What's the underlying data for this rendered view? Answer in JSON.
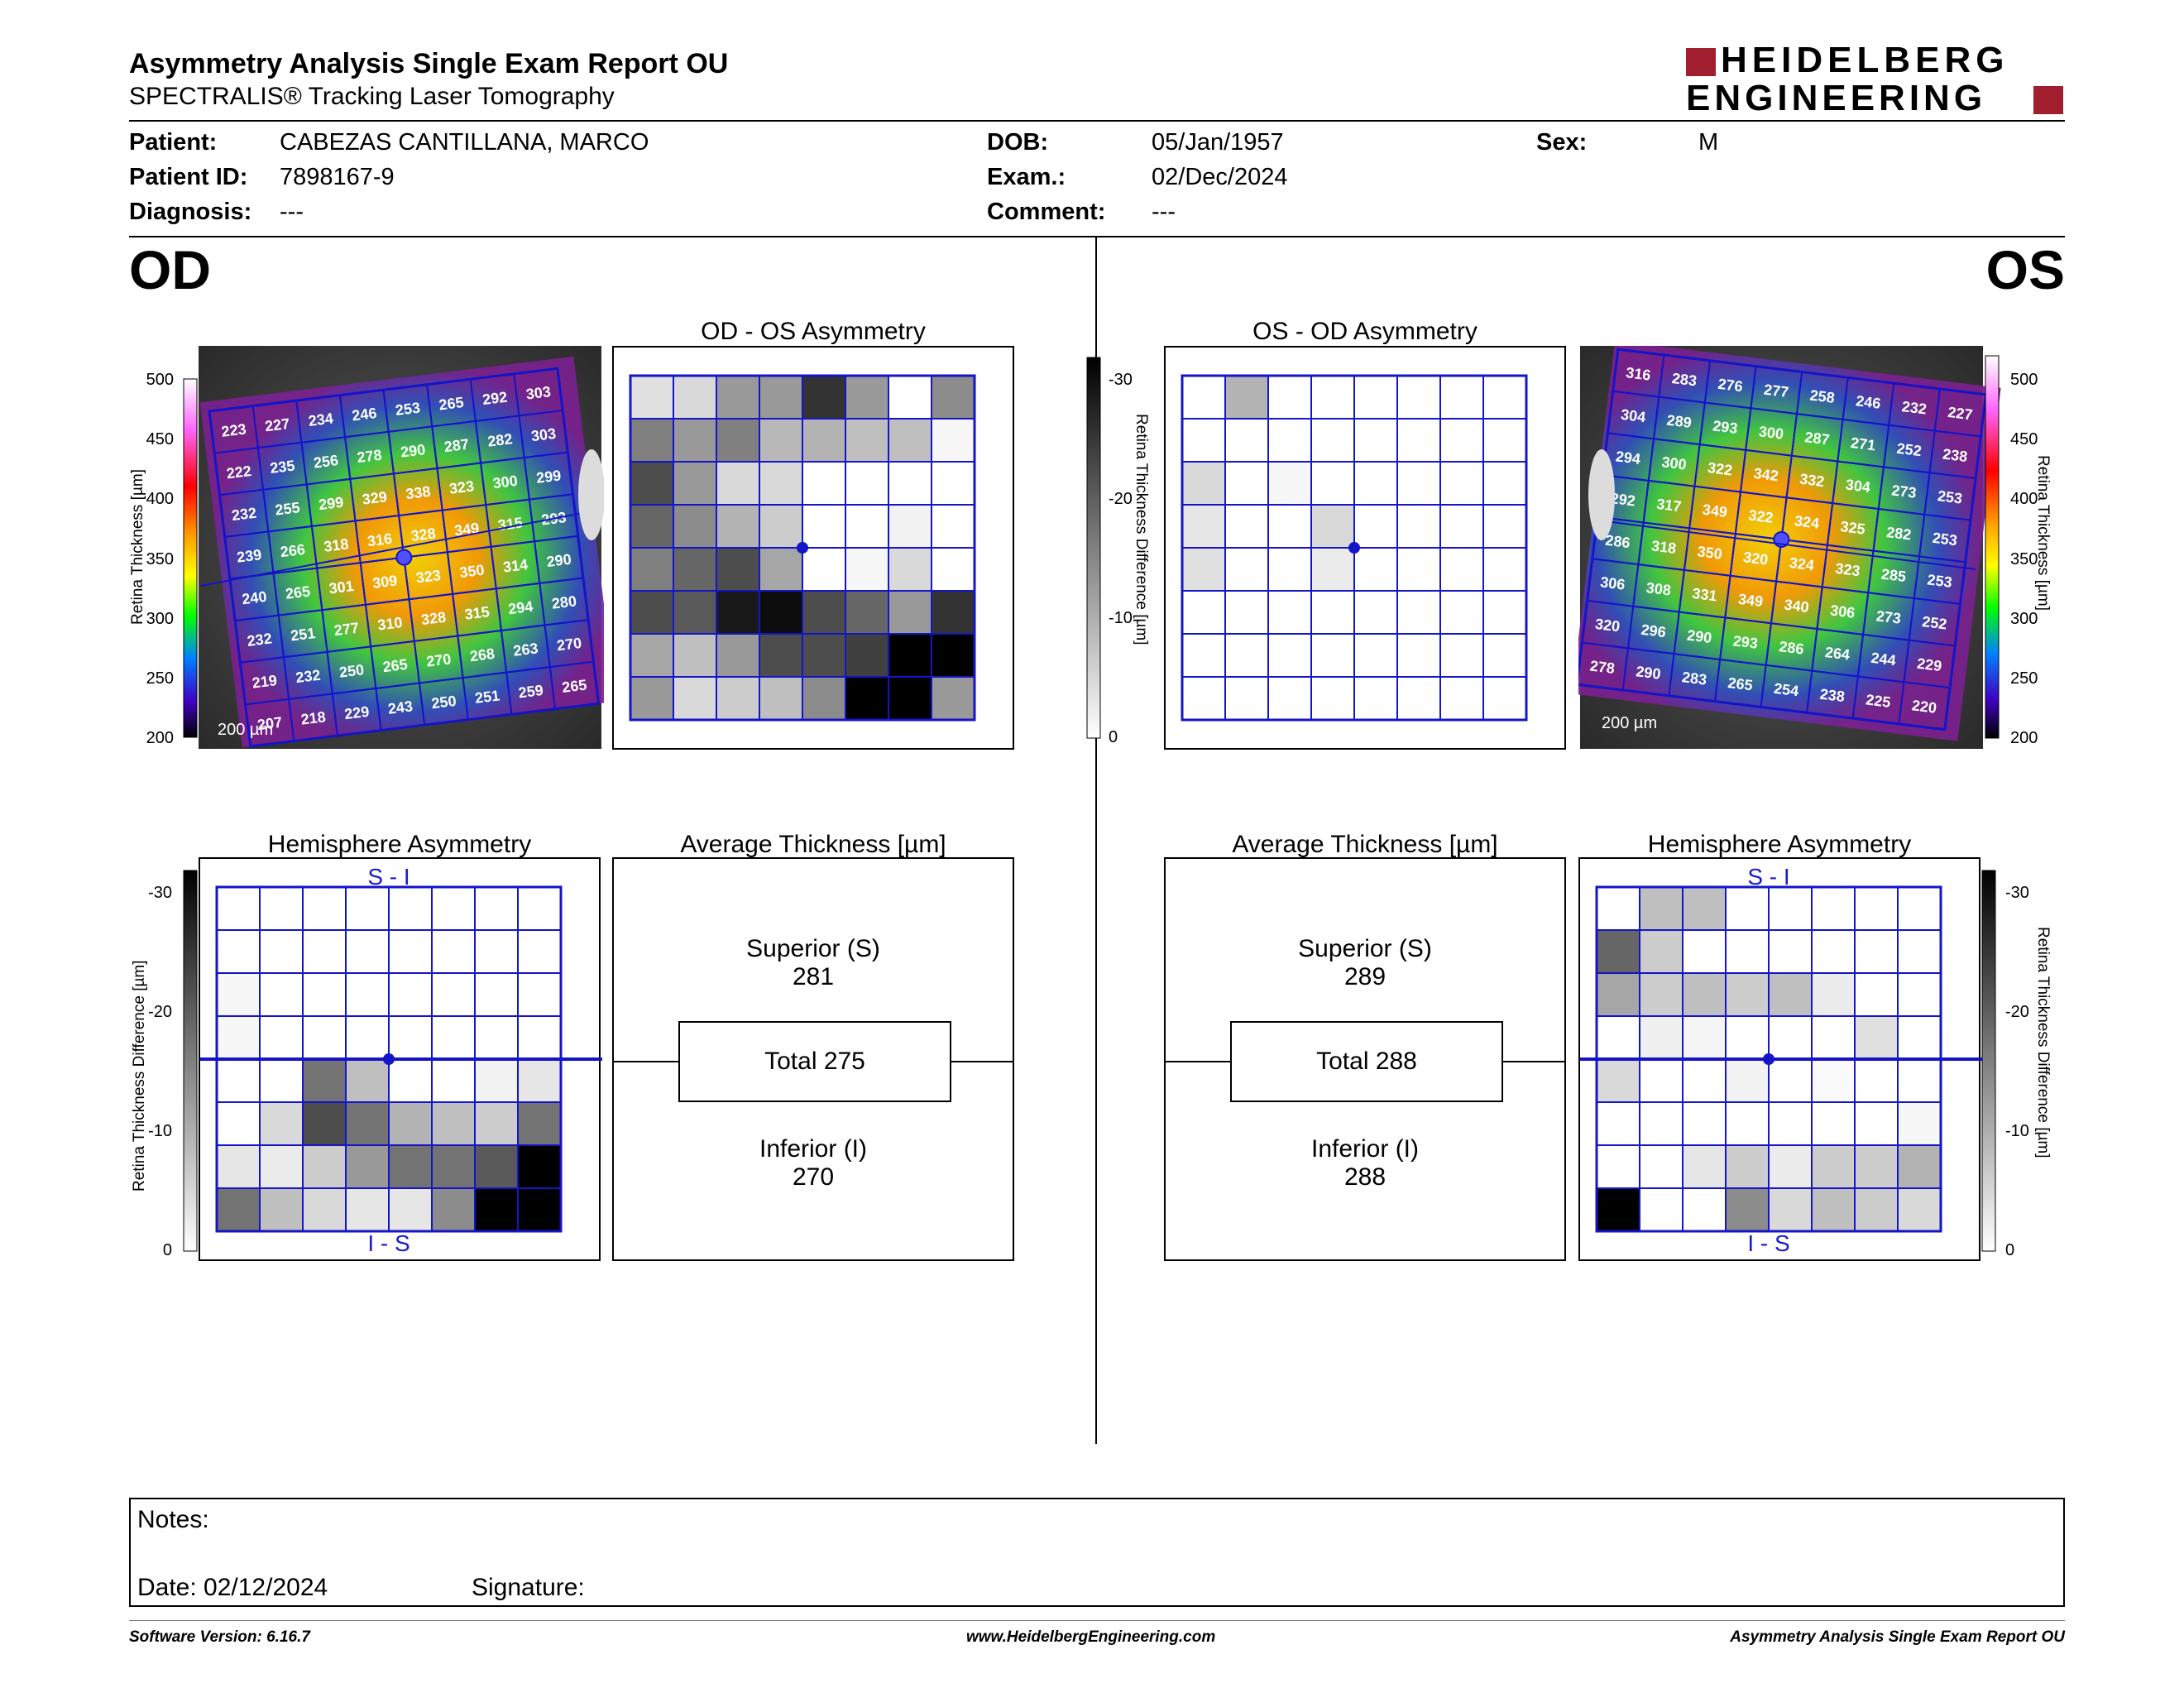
{
  "header": {
    "title": "Asymmetry Analysis Single Exam Report OU",
    "subtitle": "SPECTRALIS® Tracking Laser Tomography",
    "logo_line1": "HEIDELBERG",
    "logo_line2": "ENGINEERING"
  },
  "patient": {
    "patient_label": "Patient:",
    "patient_value": "CABEZAS CANTILLANA, MARCO",
    "id_label": "Patient ID:",
    "id_value": "7898167-9",
    "diagnosis_label": "Diagnosis:",
    "diagnosis_value": "---",
    "dob_label": "DOB:",
    "dob_value": "05/Jan/1957",
    "exam_label": "Exam.:",
    "exam_value": "02/Dec/2024",
    "comment_label": "Comment:",
    "comment_value": "---",
    "sex_label": "Sex:",
    "sex_value": "M"
  },
  "od": {
    "eye_label": "OD",
    "asym_title": "OD - OS Asymmetry",
    "hemi_title": "Hemisphere Asymmetry",
    "avg_title": "Average Thickness [µm]",
    "superior_label": "Superior (S)",
    "superior_value": "281",
    "total_label": "Total 275",
    "inferior_label": "Inferior (I)",
    "inferior_value": "270",
    "hemi_top": "S - I",
    "hemi_bottom": "I - S",
    "scale_label": "200 µm",
    "thickness_grid": [
      [
        223,
        227,
        234,
        246,
        253,
        265,
        292,
        303
      ],
      [
        222,
        235,
        256,
        278,
        290,
        287,
        282,
        303
      ],
      [
        232,
        255,
        299,
        329,
        338,
        323,
        300,
        299
      ],
      [
        239,
        266,
        318,
        316,
        328,
        349,
        315,
        293
      ],
      [
        240,
        265,
        301,
        309,
        323,
        350,
        314,
        290
      ],
      [
        232,
        251,
        277,
        310,
        328,
        315,
        294,
        280
      ],
      [
        219,
        232,
        250,
        265,
        270,
        268,
        263,
        270
      ],
      [
        207,
        218,
        229,
        243,
        250,
        251,
        259,
        265
      ]
    ],
    "asym_grid": [
      [
        0.12,
        0.15,
        0.4,
        0.4,
        0.8,
        0.4,
        0.0,
        0.45
      ],
      [
        0.5,
        0.4,
        0.5,
        0.28,
        0.3,
        0.25,
        0.25,
        0.03
      ],
      [
        0.7,
        0.4,
        0.15,
        0.15,
        0.0,
        0.0,
        0.0,
        0.0
      ],
      [
        0.6,
        0.45,
        0.3,
        0.2,
        0.0,
        0.0,
        0.05,
        0.0
      ],
      [
        0.5,
        0.6,
        0.7,
        0.35,
        0.0,
        0.03,
        0.15,
        0.0
      ],
      [
        0.7,
        0.65,
        0.9,
        0.95,
        0.7,
        0.6,
        0.4,
        0.8
      ],
      [
        0.35,
        0.25,
        0.4,
        0.7,
        0.7,
        0.75,
        1.0,
        1.0
      ],
      [
        0.4,
        0.15,
        0.2,
        0.25,
        0.45,
        1.0,
        1.0,
        0.4
      ]
    ],
    "hemi_grid": [
      [
        0,
        0,
        0,
        0,
        0,
        0,
        0,
        0
      ],
      [
        0,
        0,
        0,
        0,
        0,
        0,
        0,
        0
      ],
      [
        0.03,
        0,
        0,
        0,
        0,
        0,
        0,
        0
      ],
      [
        0.03,
        0,
        0,
        0,
        0,
        0,
        0,
        0
      ],
      [
        0,
        0,
        0.55,
        0.25,
        0,
        0,
        0.05,
        0.1
      ],
      [
        0,
        0.15,
        0.7,
        0.55,
        0.3,
        0.25,
        0.2,
        0.55
      ],
      [
        0.1,
        0.08,
        0.2,
        0.4,
        0.55,
        0.55,
        0.65,
        1.0
      ],
      [
        0.55,
        0.25,
        0.15,
        0.1,
        0.1,
        0.45,
        1.0,
        1.0
      ]
    ]
  },
  "os": {
    "eye_label": "OS",
    "asym_title": "OS - OD Asymmetry",
    "hemi_title": "Hemisphere Asymmetry",
    "avg_title": "Average Thickness [µm]",
    "superior_label": "Superior (S)",
    "superior_value": "289",
    "total_label": "Total 288",
    "inferior_label": "Inferior (I)",
    "inferior_value": "288",
    "hemi_top": "S - I",
    "hemi_bottom": "I - S",
    "scale_label": "200 µm",
    "thickness_grid": [
      [
        316,
        283,
        276,
        277,
        258,
        246,
        232,
        227
      ],
      [
        304,
        289,
        293,
        300,
        287,
        271,
        252,
        238
      ],
      [
        294,
        300,
        322,
        342,
        332,
        304,
        273,
        253
      ],
      [
        292,
        317,
        349,
        322,
        324,
        325,
        282,
        253
      ],
      [
        286,
        318,
        350,
        320,
        324,
        323,
        285,
        253
      ],
      [
        306,
        308,
        331,
        349,
        340,
        306,
        273,
        252
      ],
      [
        320,
        296,
        290,
        293,
        286,
        264,
        244,
        229
      ],
      [
        278,
        290,
        283,
        265,
        254,
        238,
        225,
        220
      ]
    ],
    "asym_grid": [
      [
        0,
        0.3,
        0,
        0,
        0,
        0,
        0,
        0
      ],
      [
        0,
        0,
        0,
        0,
        0,
        0,
        0,
        0
      ],
      [
        0.15,
        0,
        0.03,
        0,
        0,
        0,
        0,
        0
      ],
      [
        0.1,
        0,
        0,
        0.15,
        0,
        0,
        0,
        0
      ],
      [
        0.12,
        0,
        0,
        0.08,
        0,
        0,
        0,
        0
      ],
      [
        0,
        0,
        0,
        0,
        0,
        0,
        0,
        0
      ],
      [
        0,
        0,
        0,
        0,
        0,
        0,
        0,
        0
      ],
      [
        0,
        0,
        0,
        0,
        0,
        0,
        0,
        0
      ]
    ],
    "hemi_grid": [
      [
        0,
        0.25,
        0.25,
        0,
        0,
        0,
        0,
        0
      ],
      [
        0.6,
        0.2,
        0,
        0,
        0,
        0,
        0,
        0
      ],
      [
        0.35,
        0.2,
        0.25,
        0.2,
        0.25,
        0.08,
        0,
        0
      ],
      [
        0,
        0.06,
        0.04,
        0,
        0,
        0,
        0.12,
        0
      ],
      [
        0.15,
        0,
        0,
        0.05,
        0,
        0.02,
        0,
        0
      ],
      [
        0,
        0,
        0,
        0,
        0,
        0,
        0,
        0.03
      ],
      [
        0,
        0,
        0.1,
        0.2,
        0.08,
        0.2,
        0.2,
        0.3
      ],
      [
        1.0,
        0,
        0,
        0.45,
        0.15,
        0.25,
        0.2,
        0.15
      ]
    ]
  },
  "axes": {
    "thickness_label": "Retina  Thickness [µm]",
    "thickness_ticks": [
      "500",
      "450",
      "400",
      "350",
      "300",
      "250",
      "200"
    ],
    "diff_label": "Retina Thickness Difference [µm]",
    "diff_ticks": [
      "-30",
      "-20",
      "-10",
      "0"
    ]
  },
  "notes": {
    "notes_label": "Notes:",
    "date_label": "Date: 02/12/2024",
    "signature_label": "Signature:"
  },
  "footer": {
    "version": "Software Version: 6.16.7",
    "website": "www.HeidelbergEngineering.com",
    "report_name": "Asymmetry Analysis Single Exam Report OU"
  },
  "colors": {
    "grid_blue": "#1414c8",
    "logo_red": "#a01e2e"
  }
}
